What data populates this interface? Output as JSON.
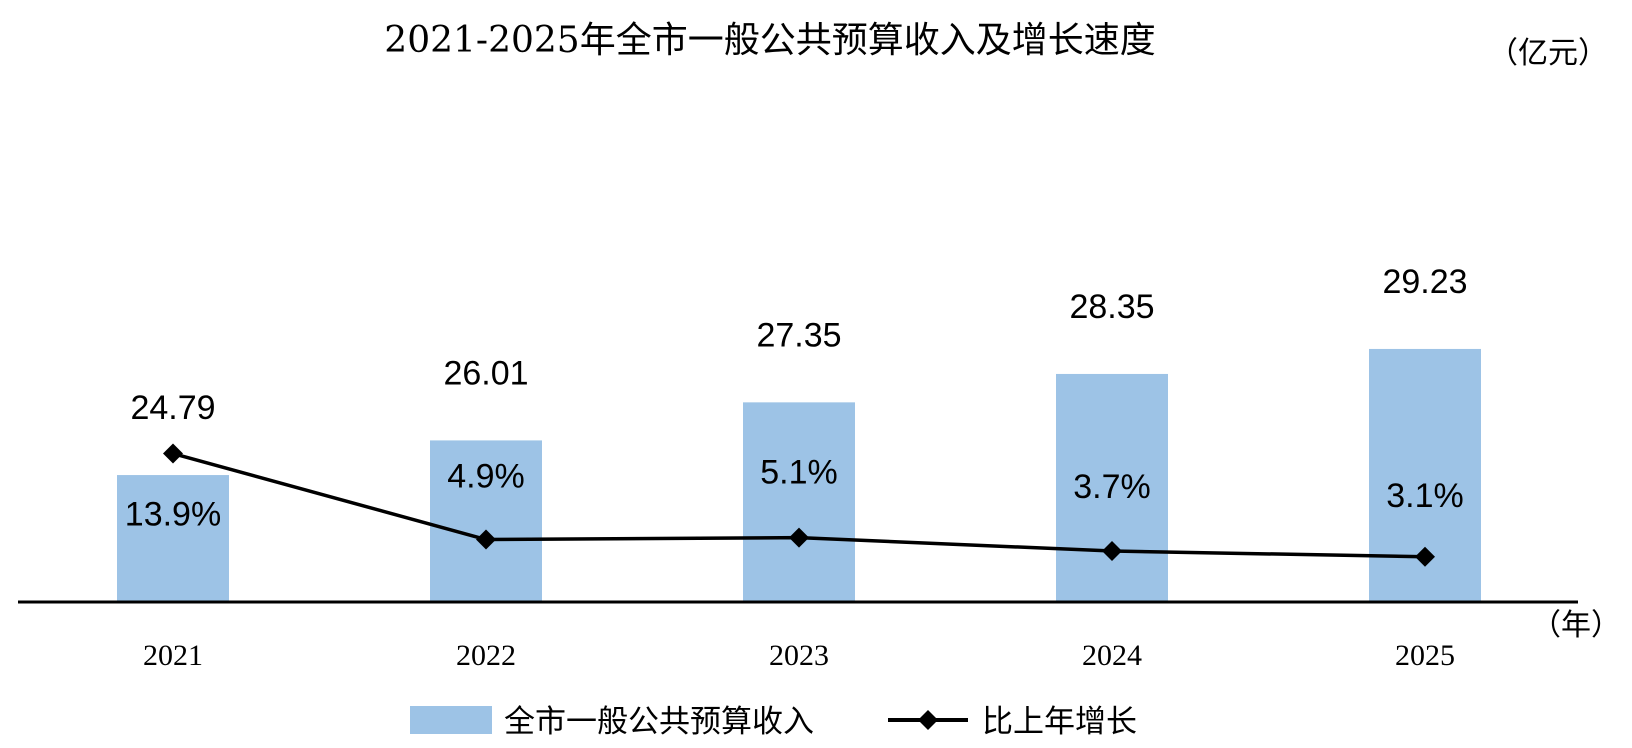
{
  "chart_data": {
    "type": "bar",
    "title": "2021-2025年全市一般公共预算收入及增长速度",
    "y_unit": "（亿元）",
    "x_unit": "（年）",
    "categories": [
      "2021",
      "2022",
      "2023",
      "2024",
      "2025"
    ],
    "series": [
      {
        "name": "全市一般公共预算收入",
        "type": "bar",
        "values": [
          24.79,
          26.01,
          27.35,
          28.35,
          29.23
        ],
        "labels": [
          "24.79",
          "26.01",
          "27.35",
          "28.35",
          "29.23"
        ],
        "color": "#9dc3e6"
      },
      {
        "name": "比上年增长",
        "type": "line",
        "marker": "diamond",
        "values": [
          13.9,
          4.9,
          5.1,
          3.7,
          3.1
        ],
        "labels": [
          "13.9%",
          "4.9%",
          "5.1%",
          "3.7%",
          "3.1%"
        ],
        "color": "#000000"
      }
    ],
    "grid": false,
    "legend_position": "bottom-center",
    "axis_line_color": "#000000"
  }
}
